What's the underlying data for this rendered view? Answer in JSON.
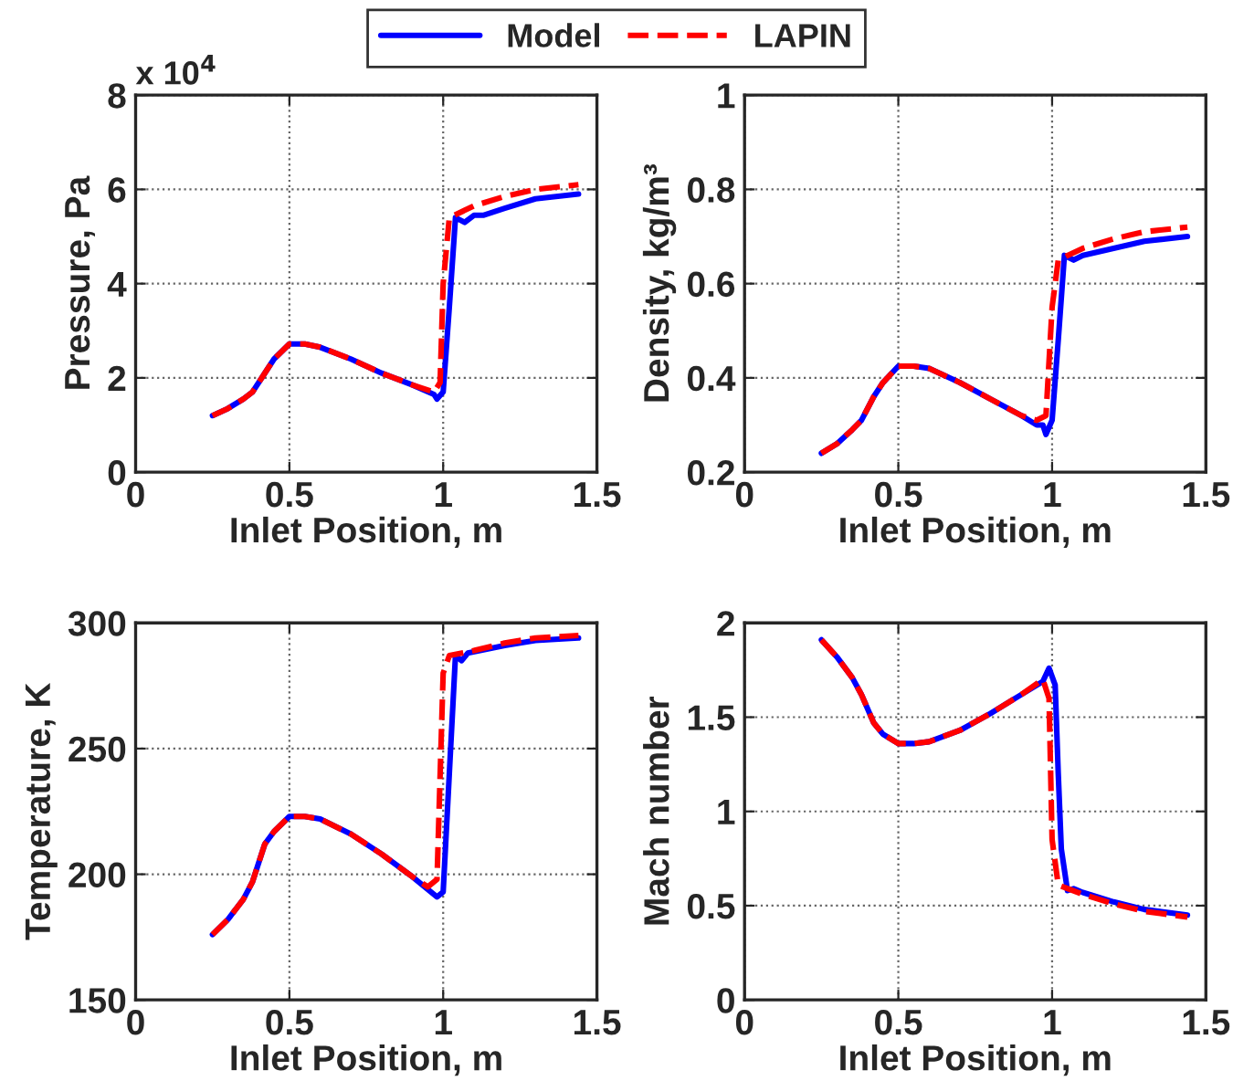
{
  "chart_data": [
    {
      "type": "line",
      "xlabel": "Inlet Position, m",
      "ylabel": "Pressure, Pa",
      "xlim": [
        0,
        1.5
      ],
      "xticks": [
        0,
        0.5,
        1,
        1.5
      ],
      "ylim": [
        0,
        8
      ],
      "yticks": [
        0,
        2,
        4,
        6,
        8
      ],
      "annotations": [
        "x 10$^{4}$"
      ],
      "grid": true,
      "legend": "top",
      "series": [
        {
          "name": "Model",
          "color": "#0000ff",
          "line_style": "solid",
          "x": [
            0.25,
            0.3,
            0.35,
            0.38,
            0.42,
            0.45,
            0.5,
            0.55,
            0.6,
            0.7,
            0.8,
            0.9,
            0.97,
            0.98,
            1.0,
            1.02,
            1.04,
            1.07,
            1.1,
            1.13,
            1.2,
            1.3,
            1.44
          ],
          "values": [
            1.2,
            1.35,
            1.55,
            1.7,
            2.1,
            2.4,
            2.72,
            2.72,
            2.65,
            2.4,
            2.1,
            1.85,
            1.65,
            1.55,
            1.7,
            3.5,
            5.4,
            5.3,
            5.45,
            5.45,
            5.6,
            5.8,
            5.9
          ]
        },
        {
          "name": "LAPIN",
          "color": "#ff0000",
          "line_style": "dashed",
          "x": [
            0.25,
            0.3,
            0.35,
            0.38,
            0.42,
            0.45,
            0.5,
            0.55,
            0.6,
            0.7,
            0.8,
            0.9,
            0.97,
            0.99,
            1.0,
            1.02,
            1.1,
            1.2,
            1.3,
            1.44
          ],
          "values": [
            1.2,
            1.35,
            1.55,
            1.7,
            2.1,
            2.4,
            2.72,
            2.72,
            2.65,
            2.4,
            2.1,
            1.85,
            1.7,
            1.9,
            4.0,
            5.4,
            5.65,
            5.85,
            6.0,
            6.1
          ]
        }
      ]
    },
    {
      "type": "line",
      "xlabel": "Inlet Position, m",
      "ylabel": "Density, kg/m³",
      "xlim": [
        0,
        1.5
      ],
      "xticks": [
        0,
        0.5,
        1,
        1.5
      ],
      "ylim": [
        0.2,
        1
      ],
      "yticks": [
        0.2,
        0.4,
        0.6,
        0.8,
        1
      ],
      "grid": true,
      "series": [
        {
          "color": "#0000ff",
          "line_style": "solid",
          "x": [
            0.25,
            0.3,
            0.35,
            0.38,
            0.42,
            0.45,
            0.5,
            0.55,
            0.6,
            0.7,
            0.8,
            0.9,
            0.95,
            0.97,
            0.98,
            1.0,
            1.02,
            1.04,
            1.07,
            1.1,
            1.2,
            1.3,
            1.44
          ],
          "values": [
            0.24,
            0.26,
            0.29,
            0.31,
            0.36,
            0.39,
            0.425,
            0.425,
            0.42,
            0.39,
            0.355,
            0.32,
            0.3,
            0.3,
            0.28,
            0.31,
            0.48,
            0.66,
            0.65,
            0.66,
            0.675,
            0.69,
            0.7
          ]
        },
        {
          "color": "#ff0000",
          "line_style": "dashed",
          "x": [
            0.25,
            0.3,
            0.35,
            0.38,
            0.42,
            0.45,
            0.5,
            0.55,
            0.6,
            0.7,
            0.8,
            0.9,
            0.95,
            0.98,
            1.0,
            1.02,
            1.1,
            1.2,
            1.3,
            1.44
          ],
          "values": [
            0.24,
            0.26,
            0.29,
            0.31,
            0.36,
            0.39,
            0.425,
            0.425,
            0.42,
            0.39,
            0.355,
            0.32,
            0.31,
            0.32,
            0.55,
            0.65,
            0.675,
            0.695,
            0.71,
            0.72
          ]
        }
      ]
    },
    {
      "type": "line",
      "xlabel": "Inlet Position, m",
      "ylabel": "Temperature, K",
      "xlim": [
        0,
        1.5
      ],
      "xticks": [
        0,
        0.5,
        1,
        1.5
      ],
      "ylim": [
        150,
        300
      ],
      "yticks": [
        150,
        200,
        250,
        300
      ],
      "grid": true,
      "series": [
        {
          "color": "#0000ff",
          "line_style": "solid",
          "x": [
            0.25,
            0.3,
            0.35,
            0.38,
            0.42,
            0.45,
            0.5,
            0.55,
            0.6,
            0.7,
            0.8,
            0.9,
            0.97,
            0.98,
            1.0,
            1.02,
            1.04,
            1.06,
            1.08,
            1.2,
            1.3,
            1.44
          ],
          "values": [
            176,
            182,
            190,
            197,
            212,
            217,
            223,
            223,
            222,
            216,
            208,
            199,
            192,
            191,
            193,
            240,
            287,
            285,
            288,
            291,
            293,
            294
          ]
        },
        {
          "color": "#ff0000",
          "line_style": "dashed",
          "x": [
            0.25,
            0.3,
            0.35,
            0.38,
            0.42,
            0.45,
            0.5,
            0.55,
            0.6,
            0.7,
            0.8,
            0.9,
            0.95,
            0.98,
            1.0,
            1.02,
            1.1,
            1.2,
            1.3,
            1.44
          ],
          "values": [
            176,
            182,
            190,
            197,
            212,
            217,
            223,
            223,
            222,
            216,
            208,
            199,
            195,
            198,
            280,
            287,
            289,
            292,
            294,
            295
          ]
        }
      ]
    },
    {
      "type": "line",
      "xlabel": "Inlet Position, m",
      "ylabel": "Mach number",
      "xlim": [
        0,
        1.5
      ],
      "xticks": [
        0,
        0.5,
        1,
        1.5
      ],
      "ylim": [
        0,
        2
      ],
      "yticks": [
        0,
        0.5,
        1,
        1.5,
        2
      ],
      "grid": true,
      "series": [
        {
          "color": "#0000ff",
          "line_style": "solid",
          "x": [
            0.25,
            0.3,
            0.35,
            0.38,
            0.42,
            0.45,
            0.5,
            0.55,
            0.6,
            0.7,
            0.8,
            0.9,
            0.97,
            0.99,
            1.01,
            1.02,
            1.03,
            1.05,
            1.07,
            1.1,
            1.2,
            1.3,
            1.44
          ],
          "values": [
            1.91,
            1.82,
            1.71,
            1.62,
            1.47,
            1.41,
            1.36,
            1.36,
            1.37,
            1.43,
            1.52,
            1.62,
            1.69,
            1.76,
            1.67,
            1.2,
            0.8,
            0.58,
            0.59,
            0.57,
            0.52,
            0.48,
            0.45
          ]
        },
        {
          "color": "#ff0000",
          "line_style": "dashed",
          "x": [
            0.25,
            0.3,
            0.35,
            0.38,
            0.42,
            0.45,
            0.5,
            0.55,
            0.6,
            0.7,
            0.8,
            0.9,
            0.97,
            0.99,
            1.0,
            1.02,
            1.1,
            1.2,
            1.3,
            1.44
          ],
          "values": [
            1.91,
            1.82,
            1.71,
            1.62,
            1.47,
            1.41,
            1.36,
            1.36,
            1.37,
            1.43,
            1.52,
            1.62,
            1.7,
            1.6,
            0.85,
            0.61,
            0.56,
            0.51,
            0.47,
            0.44
          ]
        }
      ]
    }
  ]
}
